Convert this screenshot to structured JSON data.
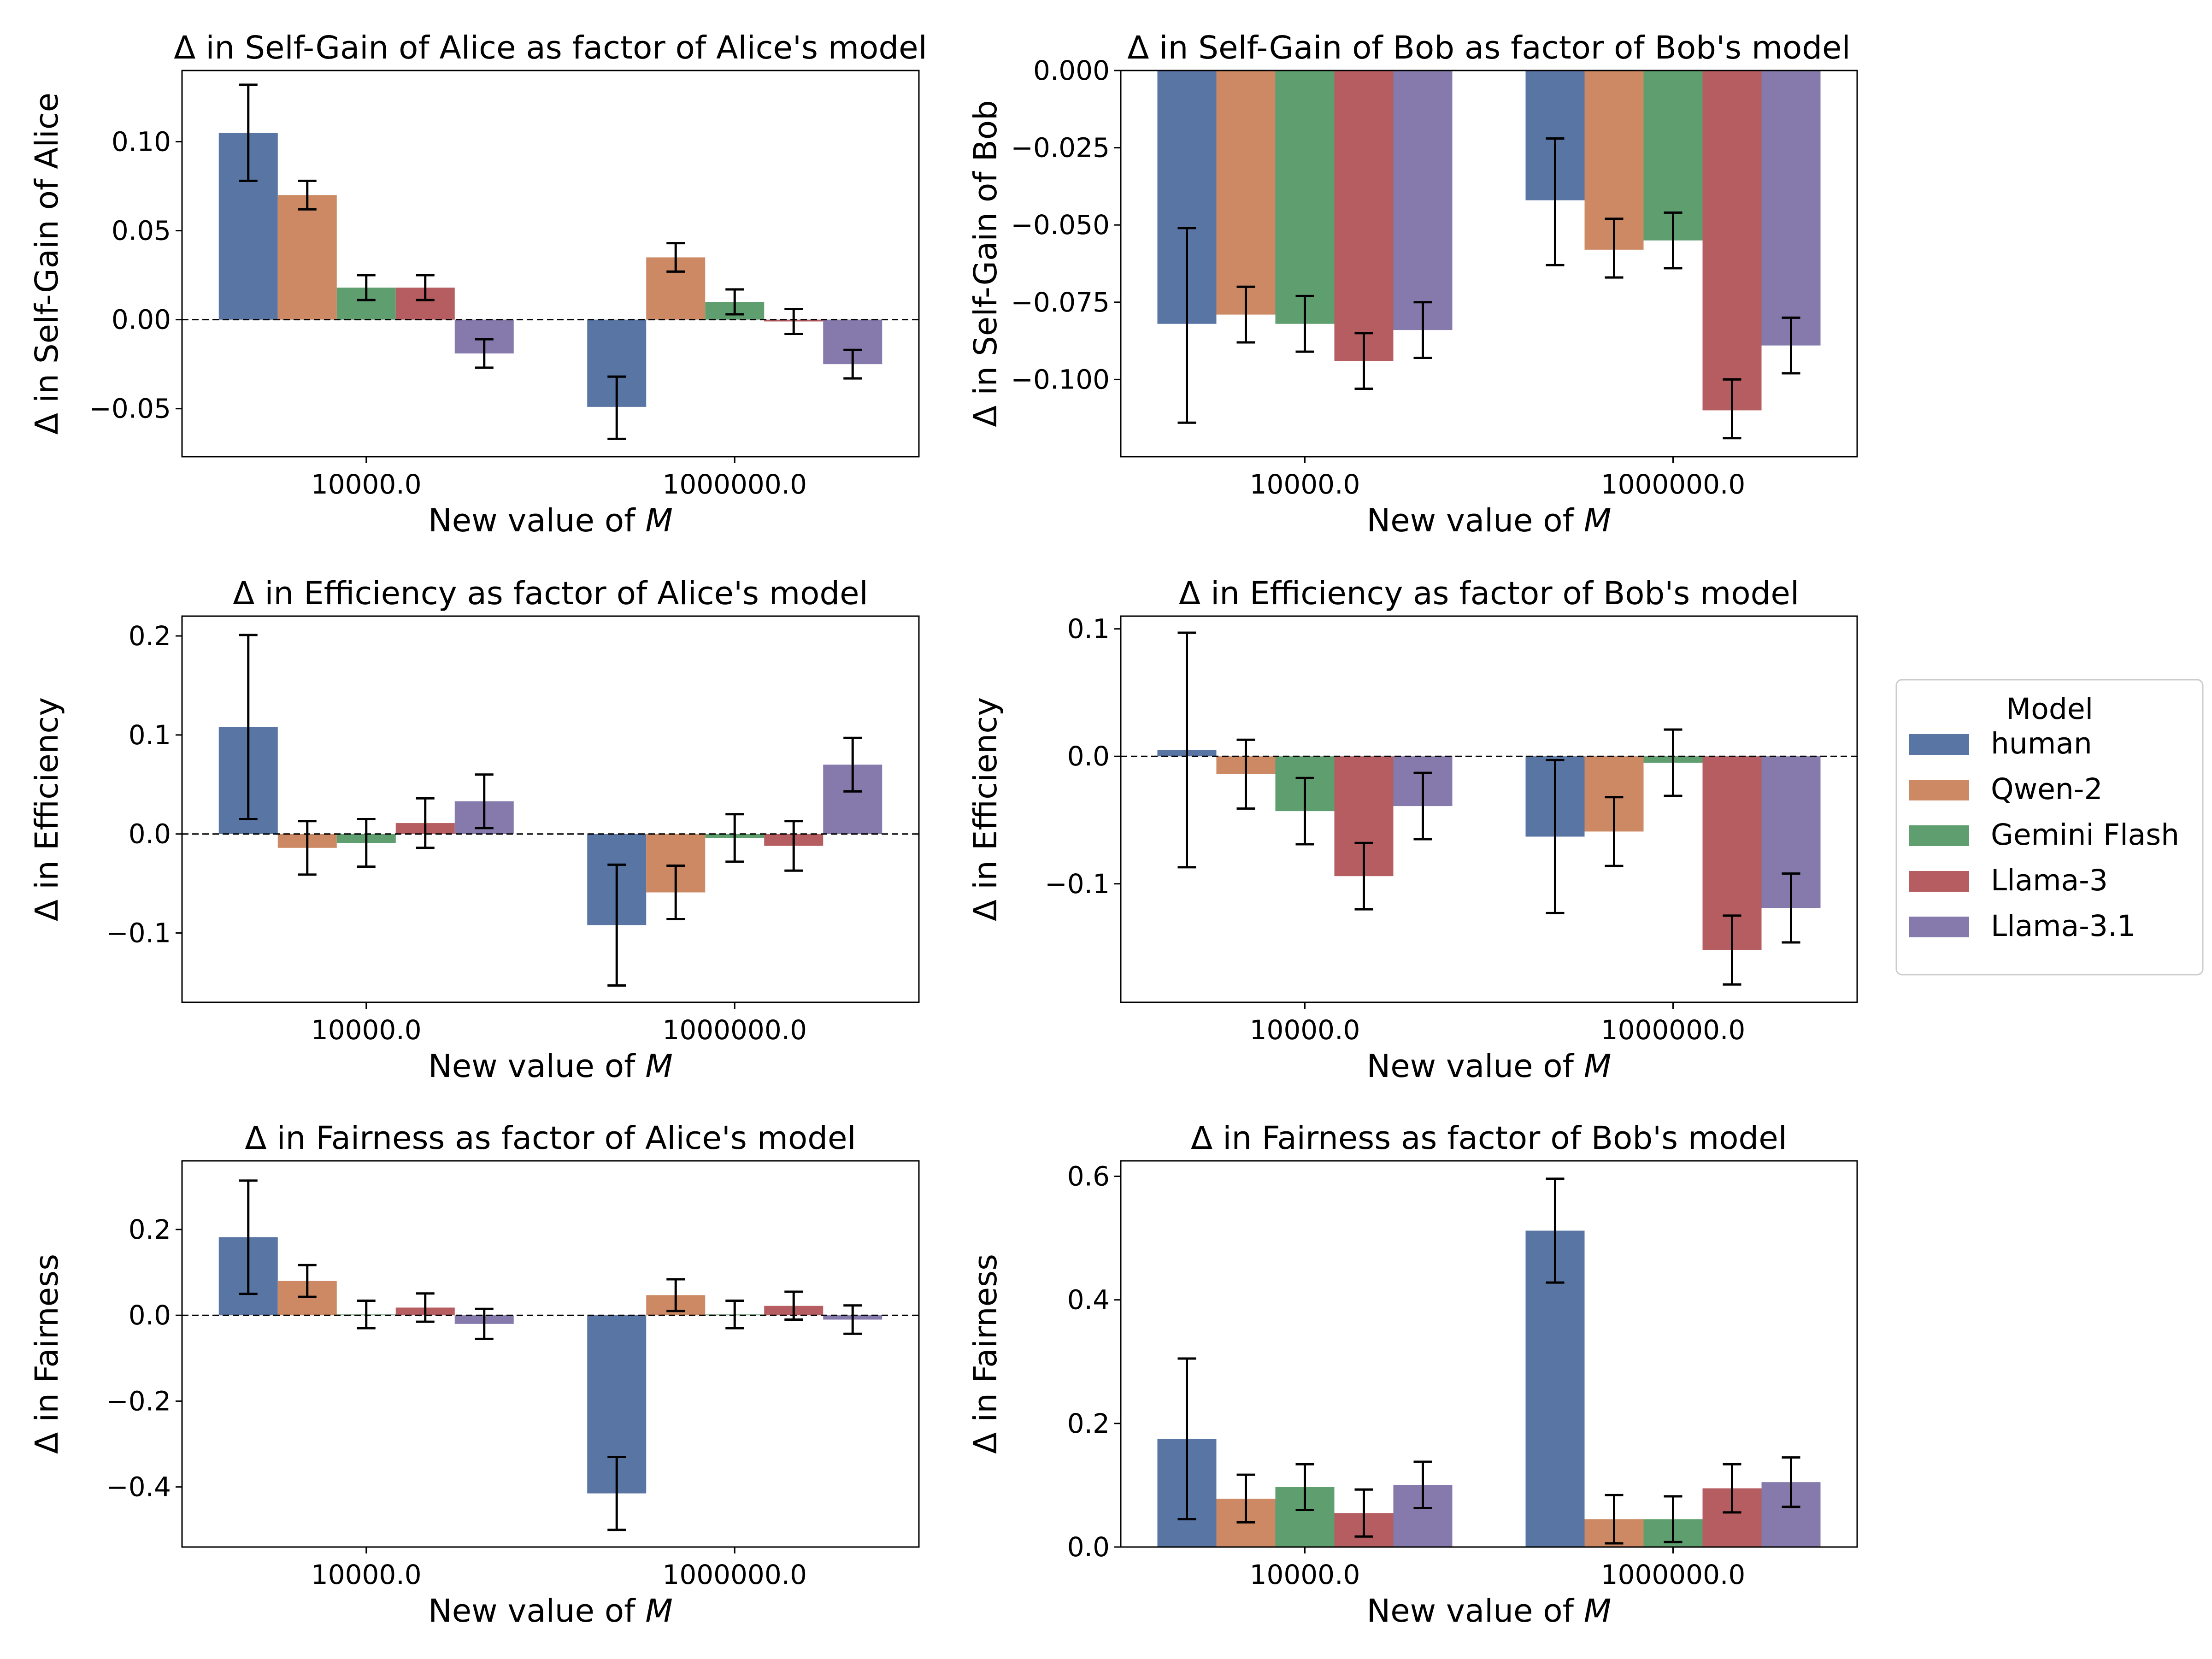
{
  "colors": {
    "human": "#5875a4",
    "Qwen-2": "#cc8963",
    "Gemini Flash": "#5f9e6e",
    "Llama-3": "#b55d60",
    "Llama-3.1": "#857aab"
  },
  "legend": {
    "title": "Model",
    "entries": [
      "human",
      "Qwen-2",
      "Gemini Flash",
      "Llama-3",
      "Llama-3.1"
    ]
  },
  "chart_data": [
    {
      "type": "bar",
      "title": "Δ in Self-Gain of Alice as factor of Alice's model",
      "xlabel": "New value of ",
      "xlabel_var": "M",
      "ylabel": "Δ in Self-Gain of Alice",
      "categories": [
        "10000.0",
        "1000000.0"
      ],
      "ylim": [
        -0.077,
        0.14
      ],
      "yticks": [
        -0.05,
        0.0,
        0.05,
        0.1
      ],
      "ytick_labels": [
        "−0.05",
        "0.00",
        "0.05",
        "0.10"
      ],
      "series": [
        {
          "name": "human",
          "values": [
            0.105,
            -0.049
          ],
          "err_low": [
            0.078,
            -0.067
          ],
          "err_high": [
            0.132,
            -0.032
          ]
        },
        {
          "name": "Qwen-2",
          "values": [
            0.07,
            0.035
          ],
          "err_low": [
            0.062,
            0.027
          ],
          "err_high": [
            0.078,
            0.043
          ]
        },
        {
          "name": "Gemini Flash",
          "values": [
            0.018,
            0.01
          ],
          "err_low": [
            0.011,
            0.003
          ],
          "err_high": [
            0.025,
            0.017
          ]
        },
        {
          "name": "Llama-3",
          "values": [
            0.018,
            -0.001
          ],
          "err_low": [
            0.011,
            -0.008
          ],
          "err_high": [
            0.025,
            0.006
          ]
        },
        {
          "name": "Llama-3.1",
          "values": [
            -0.019,
            -0.025
          ],
          "err_low": [
            -0.027,
            -0.033
          ],
          "err_high": [
            -0.011,
            -0.017
          ]
        }
      ]
    },
    {
      "type": "bar",
      "title": "Δ in Self-Gain of Bob as factor of Bob's model",
      "xlabel": "New value of ",
      "xlabel_var": "M",
      "ylabel": "Δ in Self-Gain of Bob",
      "categories": [
        "10000.0",
        "1000000.0"
      ],
      "ylim": [
        -0.125,
        0.0
      ],
      "yticks": [
        -0.1,
        -0.075,
        -0.05,
        -0.025,
        0.0
      ],
      "ytick_labels": [
        "−0.100",
        "−0.075",
        "−0.050",
        "−0.025",
        "0.000"
      ],
      "series": [
        {
          "name": "human",
          "values": [
            -0.082,
            -0.042
          ],
          "err_low": [
            -0.114,
            -0.063
          ],
          "err_high": [
            -0.051,
            -0.022
          ]
        },
        {
          "name": "Qwen-2",
          "values": [
            -0.079,
            -0.058
          ],
          "err_low": [
            -0.088,
            -0.067
          ],
          "err_high": [
            -0.07,
            -0.048
          ]
        },
        {
          "name": "Gemini Flash",
          "values": [
            -0.082,
            -0.055
          ],
          "err_low": [
            -0.091,
            -0.064
          ],
          "err_high": [
            -0.073,
            -0.046
          ]
        },
        {
          "name": "Llama-3",
          "values": [
            -0.094,
            -0.11
          ],
          "err_low": [
            -0.103,
            -0.119
          ],
          "err_high": [
            -0.085,
            -0.1
          ]
        },
        {
          "name": "Llama-3.1",
          "values": [
            -0.084,
            -0.089
          ],
          "err_low": [
            -0.093,
            -0.098
          ],
          "err_high": [
            -0.075,
            -0.08
          ]
        }
      ]
    },
    {
      "type": "bar",
      "title": "Δ in Efficiency as factor of Alice's model",
      "xlabel": "New value of ",
      "xlabel_var": "M",
      "ylabel": "Δ in Efficiency",
      "categories": [
        "10000.0",
        "1000000.0"
      ],
      "ylim": [
        -0.17,
        0.22
      ],
      "yticks": [
        -0.1,
        0.0,
        0.1,
        0.2
      ],
      "ytick_labels": [
        "−0.1",
        "0.0",
        "0.1",
        "0.2"
      ],
      "series": [
        {
          "name": "human",
          "values": [
            0.108,
            -0.092
          ],
          "err_low": [
            0.015,
            -0.153
          ],
          "err_high": [
            0.201,
            -0.031
          ]
        },
        {
          "name": "Qwen-2",
          "values": [
            -0.014,
            -0.059
          ],
          "err_low": [
            -0.041,
            -0.086
          ],
          "err_high": [
            0.013,
            -0.032
          ]
        },
        {
          "name": "Gemini Flash",
          "values": [
            -0.009,
            -0.004
          ],
          "err_low": [
            -0.033,
            -0.028
          ],
          "err_high": [
            0.015,
            0.02
          ]
        },
        {
          "name": "Llama-3",
          "values": [
            0.011,
            -0.012
          ],
          "err_low": [
            -0.014,
            -0.037
          ],
          "err_high": [
            0.036,
            0.013
          ]
        },
        {
          "name": "Llama-3.1",
          "values": [
            0.033,
            0.07
          ],
          "err_low": [
            0.006,
            0.043
          ],
          "err_high": [
            0.06,
            0.097
          ]
        }
      ]
    },
    {
      "type": "bar",
      "title": "Δ in Efficiency as factor of Bob's model",
      "xlabel": "New value of ",
      "xlabel_var": "M",
      "ylabel": "Δ in Efficiency",
      "categories": [
        "10000.0",
        "1000000.0"
      ],
      "ylim": [
        -0.193,
        0.11
      ],
      "yticks": [
        -0.1,
        0.0,
        0.1
      ],
      "ytick_labels": [
        "−0.1",
        "0.0",
        "0.1"
      ],
      "series": [
        {
          "name": "human",
          "values": [
            0.005,
            -0.063
          ],
          "err_low": [
            -0.087,
            -0.123
          ],
          "err_high": [
            0.097,
            -0.003
          ]
        },
        {
          "name": "Qwen-2",
          "values": [
            -0.014,
            -0.059
          ],
          "err_low": [
            -0.041,
            -0.086
          ],
          "err_high": [
            0.013,
            -0.032
          ]
        },
        {
          "name": "Gemini Flash",
          "values": [
            -0.043,
            -0.005
          ],
          "err_low": [
            -0.069,
            -0.031
          ],
          "err_high": [
            -0.017,
            0.021
          ]
        },
        {
          "name": "Llama-3",
          "values": [
            -0.094,
            -0.152
          ],
          "err_low": [
            -0.12,
            -0.179
          ],
          "err_high": [
            -0.068,
            -0.125
          ]
        },
        {
          "name": "Llama-3.1",
          "values": [
            -0.039,
            -0.119
          ],
          "err_low": [
            -0.065,
            -0.146
          ],
          "err_high": [
            -0.013,
            -0.092
          ]
        }
      ]
    },
    {
      "type": "bar",
      "title": "Δ in Fairness as factor of Alice's model",
      "xlabel": "New value of ",
      "xlabel_var": "M",
      "ylabel": "Δ in Fairness",
      "categories": [
        "10000.0",
        "1000000.0"
      ],
      "ylim": [
        -0.54,
        0.36
      ],
      "yticks": [
        -0.4,
        -0.2,
        0.0,
        0.2
      ],
      "ytick_labels": [
        "−0.4",
        "−0.2",
        "0.0",
        "0.2"
      ],
      "series": [
        {
          "name": "human",
          "values": [
            0.182,
            -0.415
          ],
          "err_low": [
            0.05,
            -0.5
          ],
          "err_high": [
            0.314,
            -0.33
          ]
        },
        {
          "name": "Qwen-2",
          "values": [
            0.08,
            0.047
          ],
          "err_low": [
            0.043,
            0.01
          ],
          "err_high": [
            0.117,
            0.084
          ]
        },
        {
          "name": "Gemini Flash",
          "values": [
            0.002,
            0.002
          ],
          "err_low": [
            -0.03,
            -0.03
          ],
          "err_high": [
            0.034,
            0.034
          ]
        },
        {
          "name": "Llama-3",
          "values": [
            0.018,
            0.022
          ],
          "err_low": [
            -0.015,
            -0.01
          ],
          "err_high": [
            0.051,
            0.055
          ]
        },
        {
          "name": "Llama-3.1",
          "values": [
            -0.02,
            -0.01
          ],
          "err_low": [
            -0.055,
            -0.043
          ],
          "err_high": [
            0.015,
            0.023
          ]
        }
      ]
    },
    {
      "type": "bar",
      "title": "Δ in Fairness as factor of Bob's model",
      "xlabel": "New value of ",
      "xlabel_var": "M",
      "ylabel": "Δ in Fairness",
      "categories": [
        "10000.0",
        "1000000.0"
      ],
      "ylim": [
        0.0,
        0.625
      ],
      "yticks": [
        0.0,
        0.2,
        0.4,
        0.6
      ],
      "ytick_labels": [
        "0.0",
        "0.2",
        "0.4",
        "0.6"
      ],
      "series": [
        {
          "name": "human",
          "values": [
            0.175,
            0.512
          ],
          "err_low": [
            0.045,
            0.428
          ],
          "err_high": [
            0.305,
            0.596
          ]
        },
        {
          "name": "Qwen-2",
          "values": [
            0.078,
            0.045
          ],
          "err_low": [
            0.04,
            0.006
          ],
          "err_high": [
            0.117,
            0.084
          ]
        },
        {
          "name": "Gemini Flash",
          "values": [
            0.097,
            0.045
          ],
          "err_low": [
            0.06,
            0.008
          ],
          "err_high": [
            0.134,
            0.082
          ]
        },
        {
          "name": "Llama-3",
          "values": [
            0.055,
            0.095
          ],
          "err_low": [
            0.017,
            0.056
          ],
          "err_high": [
            0.093,
            0.134
          ]
        },
        {
          "name": "Llama-3.1",
          "values": [
            0.1,
            0.105
          ],
          "err_low": [
            0.063,
            0.065
          ],
          "err_high": [
            0.138,
            0.145
          ]
        }
      ]
    }
  ]
}
